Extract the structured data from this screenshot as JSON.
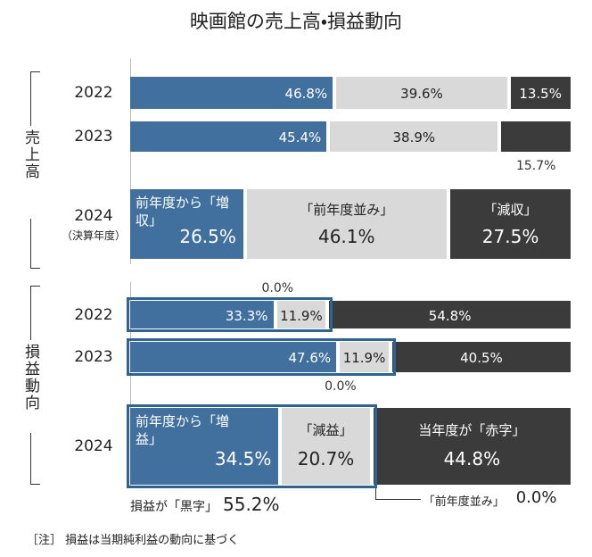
{
  "title": "映画館の売上高・損益動向",
  "note": "［注］ 損益は当期純利益の動向に基づく",
  "chart_data": [
    {
      "type": "bar",
      "horizontal": true,
      "stacked": true,
      "group_label": "売上高",
      "categories": [
        "2022",
        "2023",
        "2024"
      ],
      "category_notes": [
        null,
        null,
        "（決算年度）"
      ],
      "xlim": [
        0,
        100
      ],
      "series": [
        {
          "name": "前年度から「増収」",
          "color": "#41709f",
          "values": [
            46.8,
            45.4,
            26.5
          ],
          "value_labels": [
            "46.8%",
            "45.4%",
            "26.5%"
          ]
        },
        {
          "name": "「前年度並み」",
          "color": "#d9d9d9",
          "values": [
            39.6,
            38.9,
            46.1
          ],
          "value_labels": [
            "39.6%",
            "38.9%",
            "46.1%"
          ]
        },
        {
          "name": "「減収」",
          "color": "#3b3b3b",
          "values": [
            13.5,
            15.7,
            27.5
          ],
          "value_labels": [
            "13.5%",
            "15.7%",
            "27.5%"
          ]
        }
      ]
    },
    {
      "type": "bar",
      "horizontal": true,
      "stacked": true,
      "group_label": "損益動向",
      "categories": [
        "2022",
        "2023",
        "2024"
      ],
      "xlim": [
        0,
        100
      ],
      "series": [
        {
          "name": "前年度から「増益」",
          "color": "#41709f",
          "values": [
            33.3,
            47.6,
            34.5
          ],
          "value_labels": [
            "33.3%",
            "47.6%",
            "34.5%"
          ]
        },
        {
          "name": "「減益」",
          "color": "#d9d9d9",
          "values": [
            11.9,
            11.9,
            20.7
          ],
          "value_labels": [
            "11.9%",
            "11.9%",
            "20.7%"
          ]
        },
        {
          "name": "「前年度並み」",
          "color": "#ffffff",
          "values": [
            0.0,
            0.0,
            0.0
          ],
          "value_labels": [
            "0.0%",
            "0.0%",
            "0.0%"
          ]
        },
        {
          "name": "当年度が「赤字」",
          "color": "#3b3b3b",
          "values": [
            54.8,
            40.5,
            44.8
          ],
          "value_labels": [
            "54.8%",
            "40.5%",
            "44.8%"
          ]
        }
      ],
      "annotation": {
        "text": "損益が「黒字」",
        "value": 55.2,
        "value_label": "55.2%"
      }
    }
  ]
}
